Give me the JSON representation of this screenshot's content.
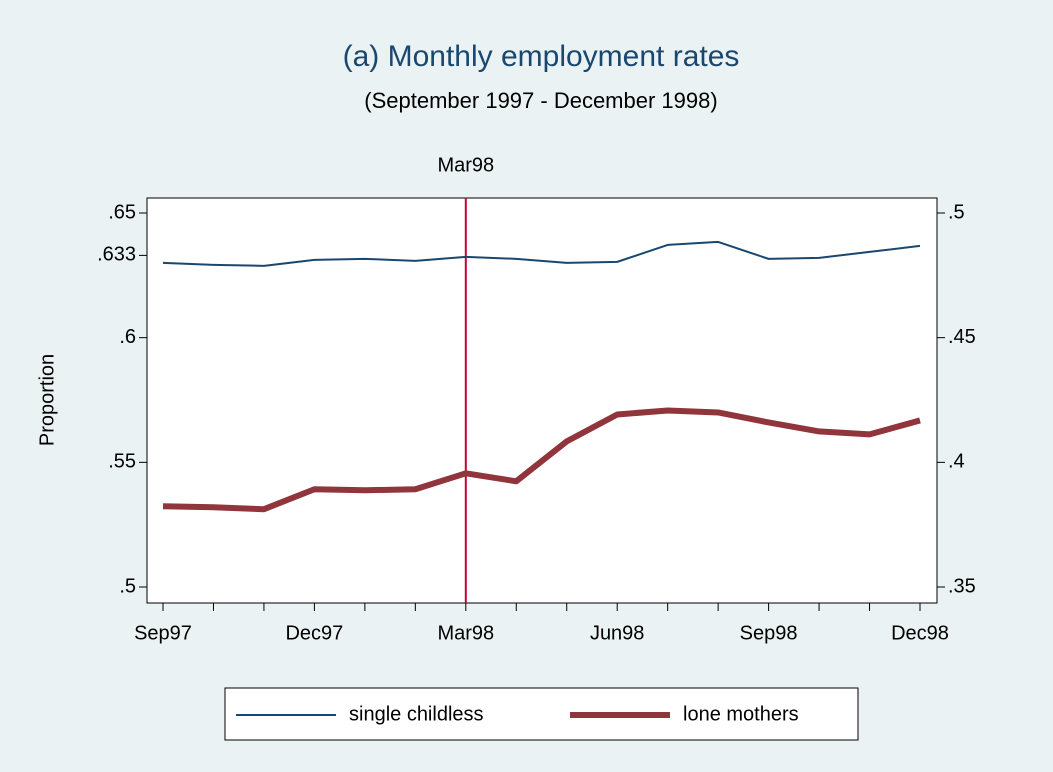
{
  "chart_data": {
    "type": "line",
    "title": "(a) Monthly employment rates",
    "subtitle": "(September 1997 - December 1998)",
    "ylabel": "Proportion",
    "categories": [
      "Sep97",
      null,
      null,
      "Dec97",
      null,
      null,
      "Mar98",
      null,
      null,
      "Jun98",
      null,
      null,
      "Sep98",
      null,
      null,
      "Dec98"
    ],
    "series": [
      {
        "name": "single childless",
        "color": "#1a476f",
        "axis": "y",
        "width": 2,
        "values": [
          0.63,
          0.6292,
          0.6288,
          0.6312,
          0.6316,
          0.6308,
          0.6324,
          0.6316,
          0.63,
          0.6304,
          0.6372,
          0.6384,
          0.6316,
          0.632,
          0.6344,
          0.6368
        ]
      },
      {
        "name": "lone mothers",
        "color": "#90353b",
        "axis": "y2",
        "width": 6,
        "values": [
          0.3824,
          0.382,
          0.3812,
          0.3892,
          0.3888,
          0.3892,
          0.3956,
          0.3924,
          0.4084,
          0.4192,
          0.4208,
          0.42,
          0.416,
          0.4124,
          0.4112,
          0.4168
        ]
      }
    ],
    "ylim": [
      0.5,
      0.65
    ],
    "yticks": [
      {
        "value": 0.5,
        "label": ".5"
      },
      {
        "value": 0.55,
        "label": ".55"
      },
      {
        "value": 0.6,
        "label": ".6"
      },
      {
        "value": 0.633,
        "label": ".633"
      },
      {
        "value": 0.65,
        "label": ".65"
      }
    ],
    "y2lim": [
      0.35,
      0.5
    ],
    "y2ticks": [
      {
        "value": 0.35,
        "label": ".35"
      },
      {
        "value": 0.4,
        "label": ".4"
      },
      {
        "value": 0.45,
        "label": ".45"
      },
      {
        "value": 0.5,
        "label": ".5"
      }
    ],
    "vline": {
      "index": 6,
      "label": "Mar98",
      "color": "#c10534"
    }
  }
}
